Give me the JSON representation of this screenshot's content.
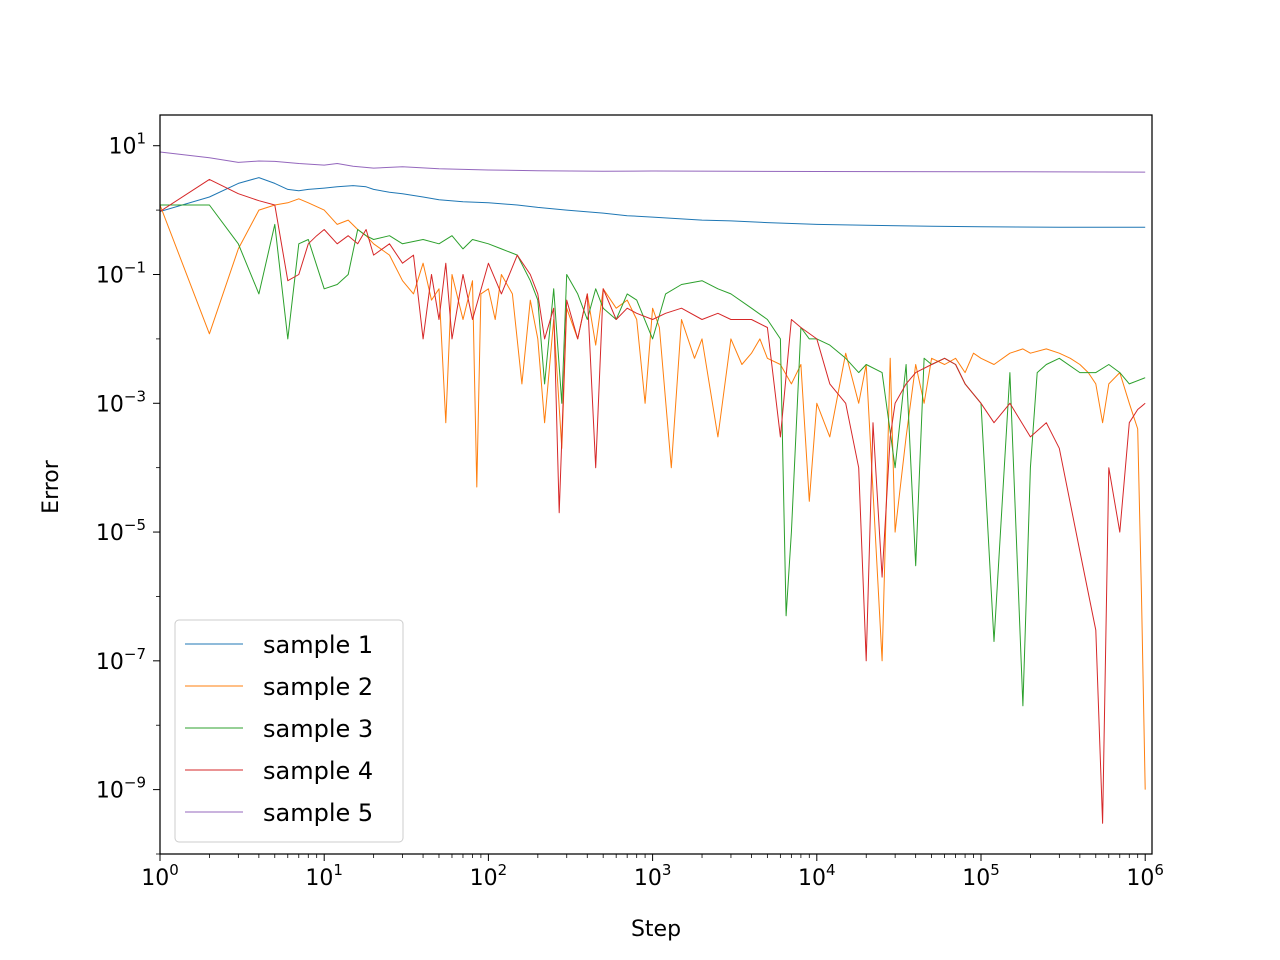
{
  "chart_data": {
    "type": "line",
    "title": "",
    "xlabel": "Step",
    "ylabel": "Error",
    "x_scale": "log",
    "y_scale": "log",
    "xlim": [
      1,
      1100000
    ],
    "ylim": [
      1e-10,
      30
    ],
    "grid": false,
    "legend_position": "lower-left",
    "x_ticks": [
      {
        "value": 1,
        "base": "10",
        "exp": "0"
      },
      {
        "value": 10,
        "base": "10",
        "exp": "1"
      },
      {
        "value": 100,
        "base": "10",
        "exp": "2"
      },
      {
        "value": 1000,
        "base": "10",
        "exp": "3"
      },
      {
        "value": 10000,
        "base": "10",
        "exp": "4"
      },
      {
        "value": 100000,
        "base": "10",
        "exp": "5"
      },
      {
        "value": 1000000,
        "base": "10",
        "exp": "6"
      }
    ],
    "y_ticks": [
      {
        "value": 1e-09,
        "base": "10",
        "exp": "−9"
      },
      {
        "value": 1e-07,
        "base": "10",
        "exp": "−7"
      },
      {
        "value": 1e-05,
        "base": "10",
        "exp": "−5"
      },
      {
        "value": 0.001,
        "base": "10",
        "exp": "−3"
      },
      {
        "value": 0.1,
        "base": "10",
        "exp": "−1"
      },
      {
        "value": 10,
        "base": "10",
        "exp": "1"
      }
    ],
    "series": [
      {
        "name": "sample 1",
        "color": "#1f77b4",
        "x": [
          1,
          2,
          3,
          4,
          5,
          6,
          7,
          8,
          10,
          12,
          15,
          18,
          20,
          25,
          30,
          40,
          50,
          70,
          100,
          150,
          200,
          300,
          500,
          700,
          1000,
          2000,
          3000,
          5000,
          10000,
          20000,
          50000,
          100000,
          300000,
          1000000
        ],
        "y": [
          0.95,
          1.6,
          2.6,
          3.2,
          2.6,
          2.1,
          2.0,
          2.1,
          2.2,
          2.3,
          2.4,
          2.3,
          2.1,
          1.9,
          1.8,
          1.6,
          1.45,
          1.35,
          1.3,
          1.2,
          1.1,
          1.0,
          0.9,
          0.82,
          0.78,
          0.7,
          0.68,
          0.64,
          0.6,
          0.58,
          0.56,
          0.55,
          0.54,
          0.54
        ]
      },
      {
        "name": "sample 2",
        "color": "#ff7f0e",
        "x": [
          1,
          2,
          3,
          4,
          5,
          6,
          7,
          8,
          10,
          12,
          14,
          16,
          18,
          20,
          25,
          30,
          35,
          40,
          45,
          50,
          55,
          60,
          70,
          80,
          85,
          90,
          100,
          110,
          120,
          140,
          160,
          180,
          200,
          220,
          250,
          280,
          300,
          350,
          400,
          450,
          500,
          600,
          700,
          800,
          900,
          1000,
          1100,
          1300,
          1500,
          1800,
          2000,
          2500,
          3000,
          3500,
          4000,
          4500,
          5000,
          6000,
          7000,
          8000,
          9000,
          10000,
          12000,
          15000,
          18000,
          20000,
          25000,
          28000,
          30000,
          35000,
          40000,
          45000,
          50000,
          60000,
          70000,
          80000,
          90000,
          100000,
          120000,
          150000,
          180000,
          200000,
          250000,
          300000,
          350000,
          400000,
          450000,
          500000,
          550000,
          600000,
          700000,
          800000,
          900000,
          950000,
          1000000
        ],
        "y": [
          1.2,
          0.012,
          0.25,
          1.0,
          1.2,
          1.3,
          1.5,
          1.3,
          1.0,
          0.6,
          0.7,
          0.5,
          0.4,
          0.3,
          0.2,
          0.08,
          0.05,
          0.15,
          0.04,
          0.06,
          0.0005,
          0.1,
          0.02,
          0.08,
          5e-05,
          0.05,
          0.06,
          0.02,
          0.1,
          0.05,
          0.002,
          0.04,
          0.01,
          0.0005,
          0.02,
          0.0002,
          0.03,
          0.01,
          0.05,
          0.008,
          0.06,
          0.03,
          0.04,
          0.02,
          0.001,
          0.03,
          0.015,
          0.0001,
          0.02,
          0.005,
          0.01,
          0.0003,
          0.01,
          0.004,
          0.006,
          0.01,
          0.005,
          0.004,
          0.002,
          0.004,
          3e-05,
          0.001,
          0.0003,
          0.006,
          0.001,
          0.004,
          1e-07,
          0.005,
          1e-05,
          0.0003,
          0.004,
          0.001,
          0.005,
          0.004,
          0.005,
          0.003,
          0.006,
          0.005,
          0.004,
          0.006,
          0.007,
          0.006,
          0.007,
          0.006,
          0.005,
          0.004,
          0.003,
          0.002,
          0.0005,
          0.002,
          0.003,
          0.001,
          0.0004,
          1e-06,
          1e-09
        ]
      },
      {
        "name": "sample 3",
        "color": "#2ca02c",
        "x": [
          1,
          2,
          3,
          4,
          5,
          6,
          7,
          8,
          10,
          12,
          14,
          16,
          18,
          20,
          25,
          30,
          40,
          50,
          60,
          70,
          80,
          100,
          120,
          150,
          180,
          200,
          220,
          250,
          280,
          300,
          350,
          400,
          450,
          500,
          600,
          700,
          800,
          1000,
          1200,
          1500,
          2000,
          2500,
          3000,
          4000,
          5000,
          6000,
          6500,
          7000,
          8000,
          9000,
          10000,
          12000,
          15000,
          18000,
          20000,
          25000,
          30000,
          35000,
          40000,
          45000,
          50000,
          60000,
          70000,
          80000,
          100000,
          120000,
          150000,
          180000,
          200000,
          220000,
          250000,
          300000,
          400000,
          500000,
          600000,
          700000,
          800000,
          1000000
        ],
        "y": [
          1.2,
          1.2,
          0.3,
          0.05,
          0.6,
          0.01,
          0.3,
          0.35,
          0.06,
          0.07,
          0.1,
          0.5,
          0.4,
          0.35,
          0.4,
          0.3,
          0.35,
          0.3,
          0.4,
          0.25,
          0.35,
          0.3,
          0.25,
          0.2,
          0.08,
          0.04,
          0.002,
          0.06,
          0.001,
          0.1,
          0.05,
          0.02,
          0.06,
          0.03,
          0.02,
          0.05,
          0.04,
          0.01,
          0.05,
          0.07,
          0.08,
          0.06,
          0.05,
          0.03,
          0.02,
          0.01,
          5e-07,
          1e-05,
          0.015,
          0.01,
          0.01,
          0.008,
          0.005,
          0.003,
          0.004,
          0.003,
          0.0001,
          0.004,
          3e-06,
          0.005,
          0.004,
          0.005,
          0.004,
          0.002,
          0.001,
          2e-07,
          0.003,
          2e-08,
          0.0001,
          0.003,
          0.004,
          0.005,
          0.003,
          0.003,
          0.004,
          0.003,
          0.002,
          0.0025
        ]
      },
      {
        "name": "sample 4",
        "color": "#d62728",
        "x": [
          1,
          2,
          3,
          4,
          5,
          6,
          7,
          8,
          9,
          10,
          12,
          14,
          16,
          18,
          20,
          25,
          30,
          35,
          40,
          45,
          50,
          55,
          60,
          70,
          80,
          100,
          120,
          150,
          180,
          200,
          220,
          250,
          270,
          300,
          350,
          400,
          450,
          500,
          600,
          700,
          800,
          1000,
          1200,
          1500,
          2000,
          2500,
          3000,
          4000,
          5000,
          6000,
          7000,
          8000,
          10000,
          12000,
          15000,
          18000,
          20000,
          22000,
          25000,
          28000,
          30000,
          35000,
          40000,
          50000,
          60000,
          70000,
          80000,
          100000,
          120000,
          150000,
          200000,
          250000,
          300000,
          400000,
          500000,
          550000,
          600000,
          700000,
          800000,
          900000,
          1000000
        ],
        "y": [
          0.95,
          3.0,
          1.8,
          1.4,
          1.2,
          0.08,
          0.1,
          0.3,
          0.4,
          0.5,
          0.3,
          0.4,
          0.3,
          0.5,
          0.2,
          0.3,
          0.15,
          0.2,
          0.01,
          0.1,
          0.02,
          0.15,
          0.01,
          0.1,
          0.02,
          0.15,
          0.05,
          0.2,
          0.1,
          0.05,
          0.01,
          0.03,
          2e-05,
          0.04,
          0.01,
          0.05,
          0.0001,
          0.06,
          0.02,
          0.03,
          0.025,
          0.02,
          0.025,
          0.03,
          0.02,
          0.025,
          0.02,
          0.02,
          0.015,
          0.0003,
          0.02,
          0.015,
          0.01,
          0.002,
          0.001,
          0.0001,
          1e-07,
          0.0005,
          2e-06,
          0.0003,
          0.001,
          0.002,
          0.003,
          0.004,
          0.005,
          0.004,
          0.002,
          0.001,
          0.0005,
          0.001,
          0.0003,
          0.0005,
          0.0002,
          5e-06,
          3e-07,
          3e-10,
          0.0001,
          1e-05,
          0.0005,
          0.0008,
          0.001
        ]
      },
      {
        "name": "sample 5",
        "color": "#9467bd",
        "x": [
          1,
          2,
          3,
          4,
          5,
          7,
          10,
          12,
          15,
          20,
          30,
          50,
          100,
          200,
          500,
          1000,
          3000,
          10000,
          100000,
          1000000
        ],
        "y": [
          8.0,
          6.5,
          5.5,
          5.8,
          5.7,
          5.3,
          5.0,
          5.3,
          4.8,
          4.5,
          4.7,
          4.4,
          4.2,
          4.1,
          4.0,
          4.05,
          4.0,
          3.98,
          3.95,
          3.9
        ]
      }
    ]
  }
}
